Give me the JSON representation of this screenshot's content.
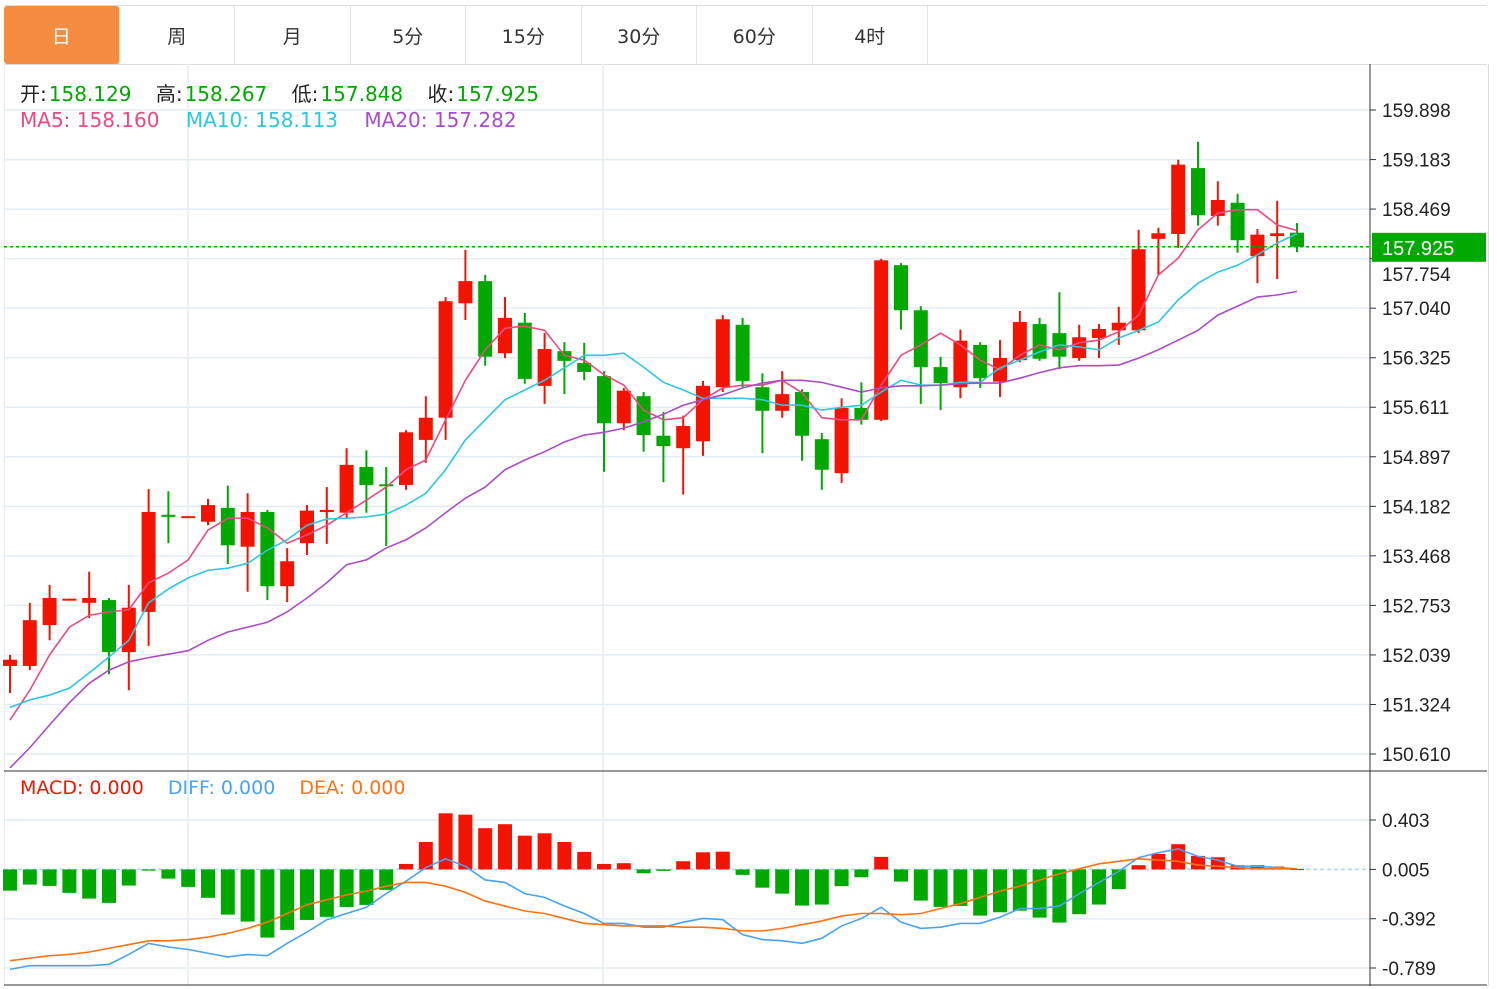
{
  "tabs": [
    {
      "label": "日",
      "active": true
    },
    {
      "label": "周"
    },
    {
      "label": "月"
    },
    {
      "label": "5分"
    },
    {
      "label": "15分"
    },
    {
      "label": "30分"
    },
    {
      "label": "60分"
    },
    {
      "label": "4时"
    }
  ],
  "ohlc_legend": {
    "open_label": "开:",
    "open": "158.129",
    "high_label": "高:",
    "high": "158.267",
    "low_label": "低:",
    "low": "157.848",
    "close_label": "收:",
    "close": "157.925"
  },
  "ma_legend": {
    "ma5": "MA5: 158.160",
    "ma10": "MA10: 158.113",
    "ma20": "MA20: 157.282"
  },
  "macd_legend": {
    "macd": "MACD: 0.000",
    "diff": "DIFF: 0.000",
    "dea": "DEA: 0.000"
  },
  "colors": {
    "up": "#f21400",
    "down": "#00a800",
    "ma5": "#ee4a7f",
    "ma10": "#2ec7e0",
    "ma20": "#ab4cc8",
    "diff": "#4aa3f0",
    "dea": "#ff7214",
    "accent_tab": "#f48c42",
    "last_price_tag": "#00a800"
  },
  "chart_data": [
    {
      "type": "candlestick",
      "y_ticks": [
        "159.898",
        "159.183",
        "158.469",
        "157.754",
        "157.040",
        "156.325",
        "155.611",
        "154.897",
        "154.182",
        "153.468",
        "152.753",
        "152.039",
        "151.324",
        "150.610"
      ],
      "ylim": [
        150.61,
        159.898
      ],
      "last_price": "157.925",
      "grid": true,
      "ohlc": [
        [
          151.88,
          152.04,
          151.49,
          151.97
        ],
        [
          151.88,
          152.79,
          151.82,
          152.54
        ],
        [
          152.47,
          153.05,
          152.25,
          152.86
        ],
        [
          152.83,
          152.85,
          152.83,
          152.85
        ],
        [
          152.79,
          153.24,
          152.57,
          152.86
        ],
        [
          152.83,
          152.86,
          151.76,
          152.08
        ],
        [
          152.08,
          153.05,
          151.53,
          152.72
        ],
        [
          152.66,
          154.43,
          152.17,
          154.1
        ],
        [
          154.06,
          154.4,
          153.65,
          154.03
        ],
        [
          154.03,
          154.04,
          154.03,
          154.04
        ],
        [
          153.96,
          154.29,
          153.91,
          154.2
        ],
        [
          154.16,
          154.48,
          153.35,
          153.62
        ],
        [
          153.6,
          154.37,
          152.95,
          154.1
        ],
        [
          154.1,
          154.13,
          152.83,
          153.03
        ],
        [
          153.03,
          153.58,
          152.8,
          153.39
        ],
        [
          153.65,
          154.2,
          153.48,
          154.12
        ],
        [
          154.1,
          154.46,
          153.64,
          154.13
        ],
        [
          154.09,
          155.02,
          154.01,
          154.78
        ],
        [
          154.75,
          154.99,
          154.09,
          154.49
        ],
        [
          154.5,
          154.75,
          153.61,
          154.48
        ],
        [
          154.49,
          155.28,
          154.42,
          155.25
        ],
        [
          155.14,
          155.77,
          154.81,
          155.46
        ],
        [
          155.46,
          157.2,
          155.14,
          157.14
        ],
        [
          157.11,
          157.88,
          156.87,
          157.43
        ],
        [
          157.43,
          157.52,
          156.21,
          156.34
        ],
        [
          156.39,
          157.2,
          156.32,
          156.9
        ],
        [
          156.83,
          156.97,
          155.95,
          156.02
        ],
        [
          155.92,
          156.68,
          155.66,
          156.45
        ],
        [
          156.42,
          156.55,
          155.8,
          156.28
        ],
        [
          156.25,
          156.54,
          156.0,
          156.12
        ],
        [
          156.06,
          156.13,
          154.68,
          155.38
        ],
        [
          155.38,
          155.89,
          155.28,
          155.85
        ],
        [
          155.77,
          155.83,
          154.97,
          155.21
        ],
        [
          155.2,
          155.54,
          154.53,
          155.05
        ],
        [
          155.02,
          155.49,
          154.35,
          155.34
        ],
        [
          155.12,
          155.99,
          154.91,
          155.92
        ],
        [
          155.9,
          156.94,
          155.83,
          156.88
        ],
        [
          156.8,
          156.9,
          155.9,
          155.99
        ],
        [
          155.9,
          156.1,
          154.95,
          155.56
        ],
        [
          155.56,
          156.13,
          155.46,
          155.8
        ],
        [
          155.83,
          155.87,
          154.84,
          155.2
        ],
        [
          155.15,
          155.24,
          154.42,
          154.71
        ],
        [
          154.66,
          155.74,
          154.52,
          155.6
        ],
        [
          155.6,
          155.97,
          155.36,
          155.43
        ],
        [
          155.43,
          157.75,
          155.41,
          157.73
        ],
        [
          157.66,
          157.69,
          156.73,
          157.01
        ],
        [
          157.01,
          157.07,
          155.66,
          156.19
        ],
        [
          156.19,
          156.34,
          155.57,
          155.96
        ],
        [
          155.9,
          156.73,
          155.74,
          156.57
        ],
        [
          156.51,
          156.55,
          155.89,
          156.03
        ],
        [
          155.98,
          156.58,
          155.76,
          156.32
        ],
        [
          156.29,
          157.0,
          156.26,
          156.84
        ],
        [
          156.81,
          156.9,
          156.28,
          156.31
        ],
        [
          156.68,
          157.27,
          156.16,
          156.34
        ],
        [
          156.32,
          156.8,
          156.28,
          156.62
        ],
        [
          156.61,
          156.81,
          156.32,
          156.74
        ],
        [
          156.72,
          157.06,
          156.51,
          156.83
        ],
        [
          156.72,
          158.17,
          156.68,
          157.89
        ],
        [
          158.04,
          158.2,
          157.52,
          158.12
        ],
        [
          158.11,
          159.18,
          157.91,
          159.11
        ],
        [
          159.06,
          159.44,
          158.23,
          158.38
        ],
        [
          158.37,
          158.87,
          158.23,
          158.6
        ],
        [
          158.56,
          158.69,
          157.84,
          158.02
        ],
        [
          157.79,
          158.18,
          157.4,
          158.1
        ],
        [
          158.08,
          158.59,
          157.46,
          158.12
        ],
        [
          158.129,
          158.267,
          157.848,
          157.925
        ]
      ],
      "ma5": [
        151.1,
        151.53,
        152.04,
        152.44,
        152.61,
        152.66,
        152.69,
        153.08,
        153.22,
        153.41,
        153.84,
        154.01,
        154.01,
        153.87,
        153.65,
        153.77,
        153.91,
        154.09,
        154.27,
        154.46,
        154.71,
        154.85,
        155.43,
        156.0,
        156.44,
        156.75,
        156.78,
        156.72,
        156.36,
        156.29,
        156.08,
        155.93,
        155.57,
        155.43,
        155.46,
        155.72,
        155.89,
        155.93,
        155.93,
        156.0,
        155.82,
        155.46,
        155.43,
        155.43,
        155.93,
        156.36,
        156.51,
        156.68,
        156.51,
        156.29,
        156.15,
        156.36,
        156.51,
        156.44,
        156.54,
        156.58,
        156.7,
        156.94,
        157.52,
        157.76,
        158.17,
        158.41,
        158.46,
        158.46,
        158.24,
        158.16
      ],
      "ma10": [
        151.28,
        151.39,
        151.46,
        151.56,
        151.78,
        152.01,
        152.25,
        152.79,
        152.99,
        153.15,
        153.26,
        153.29,
        153.36,
        153.55,
        153.7,
        153.91,
        154.0,
        154.01,
        154.03,
        154.07,
        154.2,
        154.37,
        154.71,
        155.14,
        155.43,
        155.72,
        155.86,
        156.0,
        156.18,
        156.36,
        156.36,
        156.39,
        156.19,
        155.97,
        155.86,
        155.74,
        155.74,
        155.74,
        155.72,
        155.64,
        155.64,
        155.57,
        155.61,
        155.64,
        155.83,
        156.0,
        155.93,
        155.93,
        155.97,
        155.97,
        156.18,
        156.29,
        156.41,
        156.51,
        156.48,
        156.44,
        156.61,
        156.72,
        156.84,
        157.16,
        157.4,
        157.56,
        157.66,
        157.81,
        157.98,
        158.113
      ],
      "ma20": [
        150.41,
        150.7,
        151.03,
        151.35,
        151.63,
        151.82,
        151.94,
        152.0,
        152.05,
        152.1,
        152.25,
        152.37,
        152.44,
        152.51,
        152.66,
        152.86,
        153.08,
        153.34,
        153.41,
        153.58,
        153.7,
        153.87,
        154.09,
        154.3,
        154.46,
        154.71,
        154.85,
        154.97,
        155.11,
        155.21,
        155.25,
        155.31,
        155.4,
        155.51,
        155.64,
        155.72,
        155.79,
        155.89,
        155.96,
        156.0,
        156.0,
        155.97,
        155.9,
        155.83,
        155.89,
        155.92,
        155.92,
        155.93,
        155.95,
        155.96,
        155.96,
        156.03,
        156.11,
        156.18,
        156.21,
        156.21,
        156.22,
        156.32,
        156.44,
        156.58,
        156.72,
        156.94,
        157.07,
        157.2,
        157.23,
        157.282
      ]
    },
    {
      "type": "bar+line",
      "y_ticks": [
        "0.403",
        "0.005",
        "-0.392",
        "-0.789"
      ],
      "ylim": [
        -0.85,
        0.5
      ],
      "macd_hist": [
        -0.166,
        -0.117,
        -0.128,
        -0.184,
        -0.23,
        -0.265,
        -0.125,
        -0.005,
        -0.069,
        -0.136,
        -0.224,
        -0.359,
        -0.415,
        -0.544,
        -0.482,
        -0.402,
        -0.377,
        -0.297,
        -0.281,
        -0.16,
        0.049,
        0.226,
        0.457,
        0.446,
        0.337,
        0.369,
        0.277,
        0.296,
        0.226,
        0.146,
        0.049,
        0.055,
        -0.026,
        -0.007,
        0.071,
        0.143,
        0.148,
        -0.039,
        -0.142,
        -0.19,
        -0.286,
        -0.278,
        -0.13,
        -0.058,
        0.106,
        -0.093,
        -0.246,
        -0.297,
        -0.289,
        -0.367,
        -0.34,
        -0.327,
        -0.383,
        -0.423,
        -0.356,
        -0.278,
        -0.154,
        0.039,
        0.13,
        0.208,
        0.114,
        0.103,
        0.039,
        0.039,
        0.028,
        0.008
      ],
      "diff": [
        -0.8,
        -0.77,
        -0.77,
        -0.77,
        -0.77,
        -0.76,
        -0.68,
        -0.59,
        -0.62,
        -0.64,
        -0.67,
        -0.7,
        -0.68,
        -0.69,
        -0.59,
        -0.5,
        -0.4,
        -0.35,
        -0.3,
        -0.19,
        -0.09,
        0.02,
        0.09,
        0.03,
        -0.08,
        -0.1,
        -0.19,
        -0.22,
        -0.29,
        -0.35,
        -0.43,
        -0.43,
        -0.46,
        -0.46,
        -0.42,
        -0.39,
        -0.4,
        -0.52,
        -0.56,
        -0.57,
        -0.59,
        -0.55,
        -0.45,
        -0.39,
        -0.3,
        -0.42,
        -0.47,
        -0.46,
        -0.43,
        -0.43,
        -0.38,
        -0.31,
        -0.31,
        -0.29,
        -0.19,
        -0.1,
        -0.01,
        0.1,
        0.14,
        0.17,
        0.11,
        0.08,
        0.03,
        0.03,
        0.02,
        0.01
      ],
      "dea": [
        -0.73,
        -0.71,
        -0.69,
        -0.68,
        -0.66,
        -0.63,
        -0.6,
        -0.57,
        -0.57,
        -0.56,
        -0.54,
        -0.51,
        -0.47,
        -0.42,
        -0.35,
        -0.28,
        -0.24,
        -0.2,
        -0.17,
        -0.13,
        -0.1,
        -0.1,
        -0.13,
        -0.18,
        -0.25,
        -0.29,
        -0.33,
        -0.35,
        -0.39,
        -0.43,
        -0.44,
        -0.45,
        -0.45,
        -0.45,
        -0.46,
        -0.46,
        -0.47,
        -0.49,
        -0.49,
        -0.47,
        -0.44,
        -0.41,
        -0.37,
        -0.35,
        -0.35,
        -0.36,
        -0.35,
        -0.31,
        -0.27,
        -0.22,
        -0.17,
        -0.13,
        -0.08,
        -0.03,
        0.01,
        0.05,
        0.07,
        0.09,
        0.08,
        0.07,
        0.04,
        0.03,
        0.02,
        0.01,
        0.01,
        0.01
      ]
    }
  ]
}
